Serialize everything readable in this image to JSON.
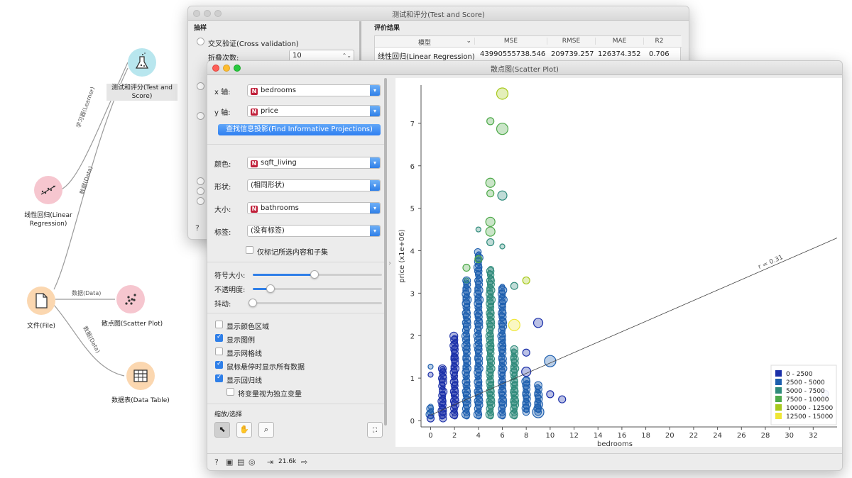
{
  "workflow": {
    "nodes": [
      {
        "id": "test-score",
        "label": "测试和评分(Test and Score)",
        "icon": "flask-icon",
        "color": "#b8e6ee"
      },
      {
        "id": "linear-regression",
        "label": "线性回归(Linear Regression)",
        "icon": "regression-icon",
        "color": "#f6c6cf"
      },
      {
        "id": "file",
        "label": "文件(File)",
        "icon": "file-icon",
        "color": "#fbd7b0"
      },
      {
        "id": "scatter-plot",
        "label": "散点图(Scatter Plot)",
        "icon": "scatter-icon",
        "color": "#f6c6cf"
      },
      {
        "id": "data-table",
        "label": "数据表(Data Table)",
        "icon": "table-icon",
        "color": "#fbd7b0"
      }
    ],
    "links": [
      {
        "label": "学习器(Learner)"
      },
      {
        "label": "数据(Data)"
      },
      {
        "label": "数据(Data)"
      },
      {
        "label": "数据(Data)"
      }
    ]
  },
  "test_window": {
    "title": "测试和评分(Test and Score)",
    "sampling_title": "抽样",
    "cross_validation": "交叉验证(Cross validation)",
    "folds_label": "折叠次数:",
    "folds_value": "10",
    "results_title": "评价结果",
    "table": {
      "headers": [
        "模型",
        "MSE",
        "RMSE",
        "MAE",
        "R2"
      ],
      "rows": [
        [
          "线性回归(Linear Regression)",
          "43990555738.546",
          "209739.257",
          "126374.352",
          "0.706"
        ]
      ]
    }
  },
  "scatter_window": {
    "title": "散点图(Scatter Plot)",
    "x_axis_label": "x 轴:",
    "x_axis_value": "bedrooms",
    "y_axis_label": "y 轴:",
    "y_axis_value": "price",
    "find_projections": "查找信息投影(Find Informative Projections)",
    "color_label": "颜色:",
    "color_value": "sqft_living",
    "shape_label": "形状:",
    "shape_value": "(相同形状)",
    "size_label": "大小:",
    "size_value": "bathrooms",
    "label_label": "标签:",
    "label_value": "(没有标签)",
    "label_only_selected": "仅标记所选内容和子集",
    "symbol_size": "符号大小:",
    "opacity": "不透明度:",
    "jitter": "抖动:",
    "symbol_size_level": 0.48,
    "opacity_level": 0.14,
    "jitter_level": 0.0,
    "checkboxes": [
      {
        "label": "显示颜色区域",
        "checked": false
      },
      {
        "label": "显示图例",
        "checked": true
      },
      {
        "label": "显示网格线",
        "checked": false
      },
      {
        "label": "鼠标悬停时显示所有数据",
        "checked": true
      },
      {
        "label": "显示回归线",
        "checked": true
      }
    ],
    "treat_independent": "将变量视为独立变量",
    "zoom_select": "缩放/选择",
    "status_count": "21.6k",
    "accent": "#2f7fe8",
    "var_badge": "N"
  },
  "chart_data": {
    "type": "scatter",
    "xlabel": "bedrooms",
    "ylabel": "price (x1e+06)",
    "x_ticks": [
      "0",
      "2",
      "4",
      "6",
      "8",
      "10",
      "12",
      "14",
      "16",
      "18",
      "20",
      "22",
      "24",
      "26",
      "28",
      "30",
      "32"
    ],
    "y_ticks": [
      "0",
      "1",
      "2",
      "3",
      "4",
      "5",
      "6",
      "7"
    ],
    "xlim": [
      -0.8,
      34
    ],
    "ylim": [
      -0.15,
      7.9
    ],
    "regression_label": "r = 0.31",
    "regression_line": [
      [
        0,
        0.13
      ],
      [
        34,
        4.3
      ]
    ],
    "legend": [
      {
        "label": "0 - 2500",
        "color": "#1a2fa8"
      },
      {
        "label": "2500 - 5000",
        "color": "#1e5fae"
      },
      {
        "label": "5000 - 7500",
        "color": "#2e8a7a"
      },
      {
        "label": "7500 - 10000",
        "color": "#4ea94a"
      },
      {
        "label": "10000 - 12500",
        "color": "#a7c91c"
      },
      {
        "label": "12500 - 15000",
        "color": "#efe635"
      }
    ],
    "columns": [
      {
        "x": 0,
        "from": 0.1,
        "to": 0.35,
        "cat": 1
      },
      {
        "x": 1,
        "from": 0.05,
        "to": 1.25,
        "cat": 0
      },
      {
        "x": 2,
        "from": 0.1,
        "to": 2.0,
        "cat": 0
      },
      {
        "x": 3,
        "from": 0.1,
        "to": 3.3,
        "cat": 1
      },
      {
        "x": 4,
        "from": 0.1,
        "to": 4.0,
        "cat": 1
      },
      {
        "x": 5,
        "from": 0.1,
        "to": 3.6,
        "cat": 2
      },
      {
        "x": 6,
        "from": 0.1,
        "to": 3.2,
        "cat": 1
      },
      {
        "x": 7,
        "from": 0.1,
        "to": 1.7,
        "cat": 2
      },
      {
        "x": 8,
        "from": 0.2,
        "to": 1.0,
        "cat": 1
      },
      {
        "x": 9,
        "from": 0.2,
        "to": 0.85,
        "cat": 1
      }
    ],
    "points": [
      {
        "x": 0,
        "y": 0.05,
        "s": 2,
        "cat": 0
      },
      {
        "x": 0,
        "y": 1.08,
        "s": 1,
        "cat": 0
      },
      {
        "x": 0,
        "y": 1.27,
        "s": 1,
        "cat": 1
      },
      {
        "x": 1,
        "y": 1.22,
        "s": 1,
        "cat": 0
      },
      {
        "x": 2,
        "y": 1.5,
        "s": 2,
        "cat": 0
      },
      {
        "x": 3,
        "y": 3.3,
        "s": 1,
        "cat": 2
      },
      {
        "x": 3,
        "y": 3.6,
        "s": 2,
        "cat": 3
      },
      {
        "x": 4,
        "y": 3.8,
        "s": 2,
        "cat": 3
      },
      {
        "x": 4,
        "y": 4.5,
        "s": 1,
        "cat": 2
      },
      {
        "x": 5,
        "y": 4.2,
        "s": 2,
        "cat": 2
      },
      {
        "x": 5,
        "y": 4.45,
        "s": 3,
        "cat": 3
      },
      {
        "x": 5,
        "y": 4.68,
        "s": 3,
        "cat": 3
      },
      {
        "x": 5,
        "y": 5.35,
        "s": 2,
        "cat": 3
      },
      {
        "x": 5,
        "y": 5.6,
        "s": 3,
        "cat": 3
      },
      {
        "x": 5,
        "y": 7.05,
        "s": 2,
        "cat": 3
      },
      {
        "x": 6,
        "y": 4.1,
        "s": 1,
        "cat": 2
      },
      {
        "x": 6,
        "y": 5.3,
        "s": 3,
        "cat": 2
      },
      {
        "x": 6,
        "y": 6.87,
        "s": 4,
        "cat": 3
      },
      {
        "x": 6,
        "y": 7.7,
        "s": 4,
        "cat": 4
      },
      {
        "x": 7,
        "y": 3.17,
        "s": 2,
        "cat": 2
      },
      {
        "x": 7,
        "y": 2.25,
        "s": 4,
        "cat": 5
      },
      {
        "x": 8,
        "y": 3.3,
        "s": 2,
        "cat": 4
      },
      {
        "x": 8,
        "y": 1.6,
        "s": 2,
        "cat": 0
      },
      {
        "x": 8,
        "y": 1.15,
        "s": 3,
        "cat": 0
      },
      {
        "x": 9,
        "y": 2.3,
        "s": 3,
        "cat": 0
      },
      {
        "x": 9,
        "y": 0.2,
        "s": 4,
        "cat": 1
      },
      {
        "x": 10,
        "y": 1.4,
        "s": 4,
        "cat": 1
      },
      {
        "x": 10,
        "y": 0.62,
        "s": 2,
        "cat": 0
      },
      {
        "x": 11,
        "y": 0.5,
        "s": 2,
        "cat": 0
      },
      {
        "x": 33,
        "y": 0.63,
        "s": 2,
        "cat": 0
      }
    ]
  }
}
